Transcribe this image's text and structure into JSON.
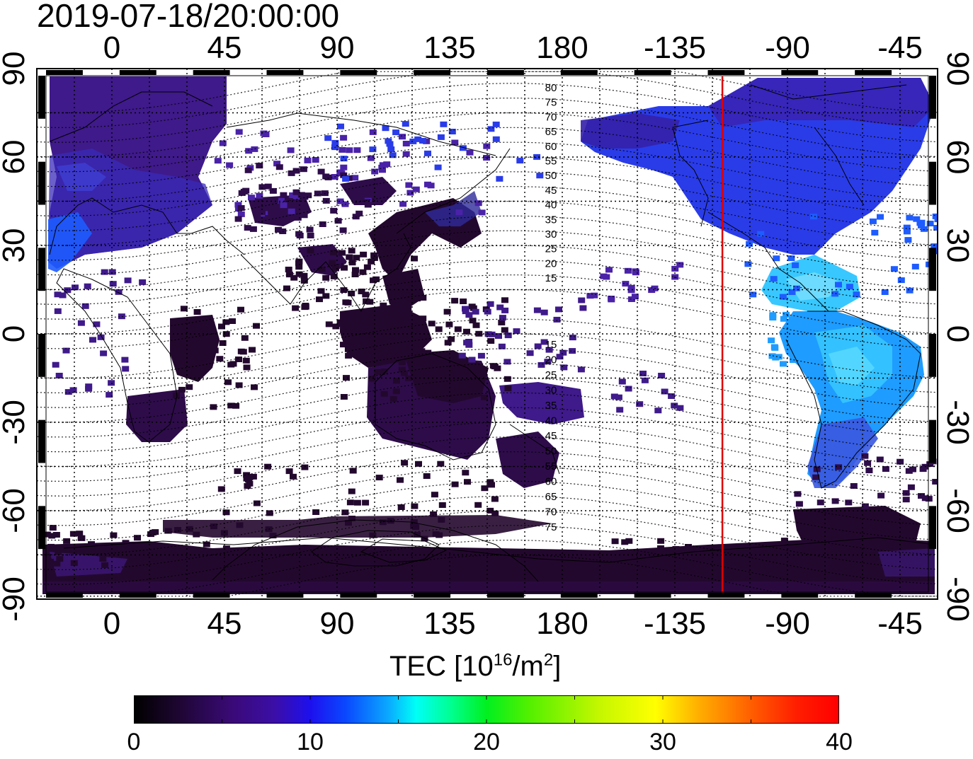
{
  "title": "2019-07-18/20:00:00",
  "map": {
    "top_lon_labels": [
      "0",
      "45",
      "90",
      "135",
      "180",
      "-135",
      "-90",
      "-45"
    ],
    "bottom_lon_labels": [
      "0",
      "45",
      "90",
      "135",
      "180",
      "-135",
      "-90",
      "-45"
    ],
    "lat_labels": [
      "90",
      "60",
      "30",
      "0",
      "-30",
      "-60",
      "-90"
    ],
    "maglat_labels_north": [
      "80",
      "75",
      "70",
      "65",
      "60",
      "55",
      "50",
      "45",
      "40",
      "35",
      "30",
      "25",
      "20",
      "15"
    ],
    "maglat_labels_south": [
      "15",
      "20",
      "25",
      "30",
      "35",
      "40",
      "45",
      "50",
      "55",
      "60",
      "65",
      "70",
      "75"
    ],
    "terminator_line_lon": -116,
    "terminator_line_color": "#dd0000"
  },
  "colorbar": {
    "title_main": "TEC  [10",
    "title_exp": "16",
    "title_unit": "/m",
    "title_unit_exp": "2",
    "title_close": "]",
    "ticks": [
      "0",
      "10",
      "20",
      "30",
      "40"
    ],
    "range": [
      0,
      40
    ]
  }
}
